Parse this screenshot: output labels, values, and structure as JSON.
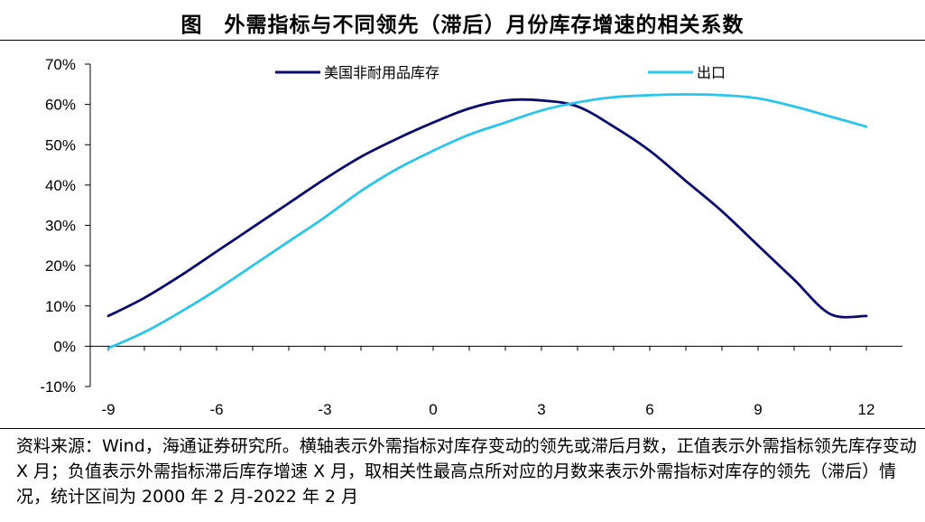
{
  "title": "图　外需指标与不同领先（滞后）月份库存增速的相关系数",
  "note": "资料来源：Wind，海通证券研究所。横轴表示外需指标对库存变动的领先或滞后月数，正值表示外需指标领先库存变动 X 月；负值表示外需指标滞后库存增速 X 月，取相关性最高点所对应的月数来表示外需指标对库存的领先（滞后）情况，统计区间为 2000 年 2 月-2022 年 2 月",
  "chart_data": {
    "type": "line",
    "xlabel": "",
    "ylabel": "",
    "xlim": [
      -9,
      12
    ],
    "ylim": [
      -10,
      70
    ],
    "x_ticks": [
      "-9",
      "-6",
      "-3",
      "0",
      "3",
      "6",
      "9",
      "12"
    ],
    "y_ticks": [
      "-10%",
      "0%",
      "10%",
      "20%",
      "30%",
      "40%",
      "50%",
      "60%",
      "70%"
    ],
    "legend_position": "top",
    "grid": false,
    "x": [
      -9,
      -8,
      -7,
      -6,
      -5,
      -4,
      -3,
      -2,
      -1,
      0,
      1,
      2,
      3,
      4,
      5,
      6,
      7,
      8,
      9,
      10,
      11,
      12
    ],
    "series": [
      {
        "name": "美国非耐用品库存",
        "color": "#0a0a6e",
        "values": [
          7.5,
          12.0,
          17.5,
          23.5,
          29.5,
          35.5,
          41.5,
          47.0,
          51.5,
          55.5,
          59.0,
          61.0,
          61.0,
          59.5,
          54.5,
          48.5,
          41.0,
          33.5,
          25.0,
          16.5,
          8.0,
          7.5
        ]
      },
      {
        "name": "出口",
        "color": "#29c5eb",
        "values": [
          -0.5,
          3.5,
          8.5,
          14.0,
          20.0,
          26.0,
          32.0,
          38.5,
          44.0,
          48.5,
          52.5,
          55.5,
          58.5,
          60.5,
          61.8,
          62.3,
          62.5,
          62.3,
          61.5,
          59.5,
          57.0,
          54.5
        ]
      }
    ]
  }
}
